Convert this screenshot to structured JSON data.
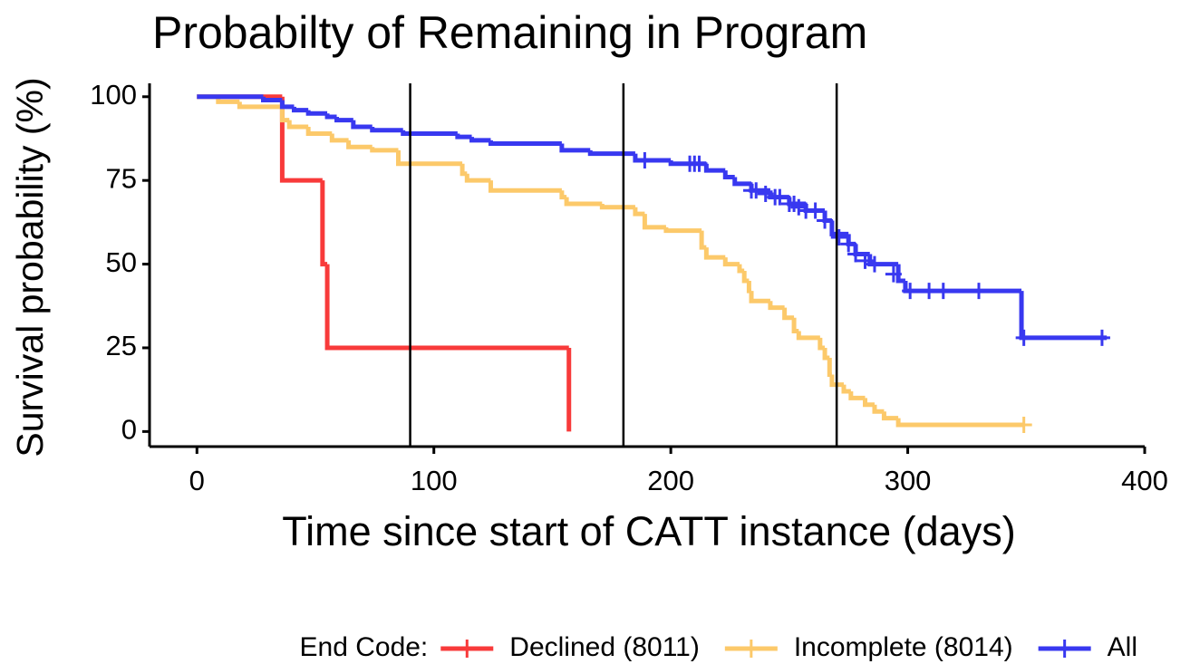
{
  "chart_data": {
    "type": "line",
    "step": "post",
    "title": "Probabilty of Remaining in Program",
    "x_label": "Time since start of CATT instance (days)",
    "y_label": "Survival probability (%)",
    "legend_title": "End Code:",
    "legend_position": "bottom",
    "xlim": [
      -20,
      400
    ],
    "ylim": [
      -4.5,
      104
    ],
    "xticks": [
      0,
      100,
      200,
      300,
      400
    ],
    "yticks": [
      0,
      25,
      50,
      75,
      100
    ],
    "vlines": [
      90,
      180,
      270
    ],
    "series": [
      {
        "name": "Declined (8011)",
        "color": "#f83a3a",
        "x": [
          0,
          36,
          53,
          55,
          157
        ],
        "values": [
          100,
          75,
          50,
          25,
          0
        ],
        "censor_x": [],
        "censor_values": []
      },
      {
        "name": "Incomplete (8014)",
        "color": "#fcc96a",
        "x": [
          0,
          9,
          18,
          36,
          39,
          47,
          57,
          64,
          74,
          85,
          112,
          114,
          124,
          154,
          156,
          171,
          185,
          189,
          198,
          213,
          215,
          223,
          229,
          231,
          233,
          234,
          242,
          248,
          252,
          254,
          263,
          265,
          267,
          268,
          273,
          276,
          282,
          286,
          290,
          296,
          349
        ],
        "values": [
          100,
          98.5,
          97,
          93,
          91,
          89,
          87,
          85,
          84,
          80,
          77,
          75,
          72,
          70,
          68,
          67,
          65,
          61,
          60,
          55,
          52,
          50,
          48,
          45,
          42,
          39,
          37,
          34,
          30,
          28,
          25,
          22,
          17,
          14,
          12,
          10,
          8,
          6,
          4,
          2,
          2
        ],
        "censor_x": [
          349
        ],
        "censor_values": [
          2
        ]
      },
      {
        "name": "All",
        "color": "#3838f0",
        "x": [
          0,
          28,
          36,
          41,
          47,
          55,
          59,
          66,
          74,
          87,
          110,
          116,
          124,
          154,
          166,
          185,
          200,
          215,
          223,
          227,
          234,
          242,
          250,
          257,
          265,
          268,
          275,
          278,
          284,
          296,
          299,
          348,
          384
        ],
        "values": [
          100,
          99,
          97,
          96,
          95,
          94,
          93,
          91,
          90,
          89,
          88,
          87,
          86,
          84,
          83,
          81,
          80,
          78,
          76,
          74,
          72,
          70,
          68,
          66,
          63,
          59,
          56,
          53,
          50,
          45,
          42,
          28,
          28
        ],
        "censor_x": [
          189,
          208,
          210,
          212,
          234,
          236,
          240,
          244,
          246,
          250,
          252,
          254,
          257,
          261,
          265,
          271,
          275,
          278,
          282,
          286,
          294,
          301,
          309,
          315,
          330,
          349,
          382
        ],
        "censor_values": [
          81,
          80,
          80,
          80,
          72,
          72,
          71,
          70,
          70,
          68,
          68,
          67,
          66,
          66,
          63,
          58,
          56,
          53,
          51,
          50,
          47,
          42,
          42,
          42,
          42,
          28,
          28
        ]
      }
    ]
  }
}
